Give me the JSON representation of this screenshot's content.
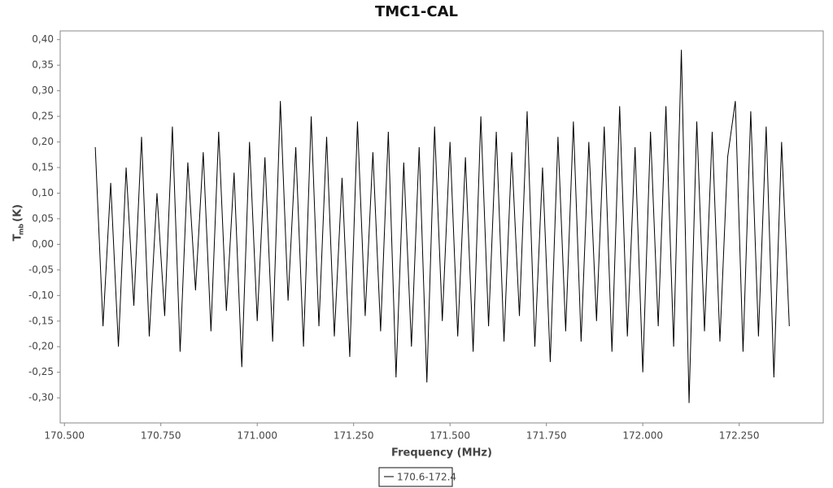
{
  "chart_data": {
    "type": "line",
    "title": "TMC1-CAL",
    "x_label": "Frequency (MHz)",
    "y_label": "T",
    "y_label_sub": "mb",
    "y_label_unit": "(K)",
    "xlim": [
      170.489,
      172.468
    ],
    "ylim": [
      -0.349,
      0.417
    ],
    "xticks": [
      {
        "value": 170.5,
        "label": "170.500"
      },
      {
        "value": 170.75,
        "label": "170.750"
      },
      {
        "value": 171.0,
        "label": "171.000"
      },
      {
        "value": 171.25,
        "label": "171.250"
      },
      {
        "value": 171.5,
        "label": "171.500"
      },
      {
        "value": 171.75,
        "label": "171.750"
      },
      {
        "value": 172.0,
        "label": "172.000"
      },
      {
        "value": 172.25,
        "label": "172.250"
      }
    ],
    "yticks": [
      {
        "value": -0.3,
        "label": "-0,30"
      },
      {
        "value": -0.25,
        "label": "-0,25"
      },
      {
        "value": -0.2,
        "label": "-0,20"
      },
      {
        "value": -0.15,
        "label": "-0,15"
      },
      {
        "value": -0.1,
        "label": "-0,10"
      },
      {
        "value": -0.05,
        "label": "-0,05"
      },
      {
        "value": 0,
        "label": "0,00"
      },
      {
        "value": 0.05,
        "label": "0,05"
      },
      {
        "value": 0.1,
        "label": "0,10"
      },
      {
        "value": 0.15,
        "label": "0,15"
      },
      {
        "value": 0.2,
        "label": "0,20"
      },
      {
        "value": 0.25,
        "label": "0,25"
      },
      {
        "value": 0.3,
        "label": "0,30"
      },
      {
        "value": 0.35,
        "label": "0,35"
      },
      {
        "value": 0.4,
        "label": "0,40"
      }
    ],
    "x": [
      170.58,
      170.6,
      170.62,
      170.64,
      170.66,
      170.68,
      170.7,
      170.72,
      170.74,
      170.76,
      170.78,
      170.8,
      170.82,
      170.84,
      170.86,
      170.88,
      170.9,
      170.92,
      170.94,
      170.96,
      170.98,
      171.0,
      171.02,
      171.04,
      171.06,
      171.08,
      171.1,
      171.12,
      171.14,
      171.16,
      171.18,
      171.2,
      171.22,
      171.24,
      171.26,
      171.28,
      171.3,
      171.32,
      171.34,
      171.36,
      171.38,
      171.4,
      171.42,
      171.44,
      171.46,
      171.48,
      171.5,
      171.52,
      171.54,
      171.56,
      171.58,
      171.6,
      171.62,
      171.64,
      171.66,
      171.68,
      171.7,
      171.72,
      171.74,
      171.76,
      171.78,
      171.8,
      171.82,
      171.84,
      171.86,
      171.88,
      171.9,
      171.92,
      171.94,
      171.96,
      171.98,
      172.0,
      172.02,
      172.04,
      172.06,
      172.08,
      172.1,
      172.12,
      172.14,
      172.16,
      172.18,
      172.2,
      172.22,
      172.24,
      172.26,
      172.28,
      172.3,
      172.32,
      172.34,
      172.36,
      172.38
    ],
    "series": [
      {
        "name": "170.6-172.4",
        "color": "#000000",
        "values": [
          0.19,
          -0.16,
          0.12,
          -0.2,
          0.15,
          -0.12,
          0.21,
          -0.18,
          0.1,
          -0.14,
          0.23,
          -0.21,
          0.16,
          -0.09,
          0.18,
          -0.17,
          0.22,
          -0.13,
          0.14,
          -0.24,
          0.2,
          -0.15,
          0.17,
          -0.19,
          0.28,
          -0.11,
          0.19,
          -0.2,
          0.25,
          -0.16,
          0.21,
          -0.18,
          0.13,
          -0.22,
          0.24,
          -0.14,
          0.18,
          -0.17,
          0.22,
          -0.26,
          0.16,
          -0.2,
          0.19,
          -0.27,
          0.23,
          -0.15,
          0.2,
          -0.18,
          0.17,
          -0.21,
          0.25,
          -0.16,
          0.22,
          -0.19,
          0.18,
          -0.14,
          0.26,
          -0.2,
          0.15,
          -0.23,
          0.21,
          -0.17,
          0.24,
          -0.19,
          0.2,
          -0.15,
          0.23,
          -0.21,
          0.27,
          -0.18,
          0.19,
          -0.25,
          0.22,
          -0.16,
          0.27,
          -0.2,
          0.38,
          -0.31,
          0.24,
          -0.17,
          0.22,
          -0.19,
          0.17,
          0.28,
          -0.21,
          0.26,
          -0.18,
          0.23,
          -0.26,
          0.2,
          -0.16
        ]
      }
    ],
    "grid": false
  }
}
